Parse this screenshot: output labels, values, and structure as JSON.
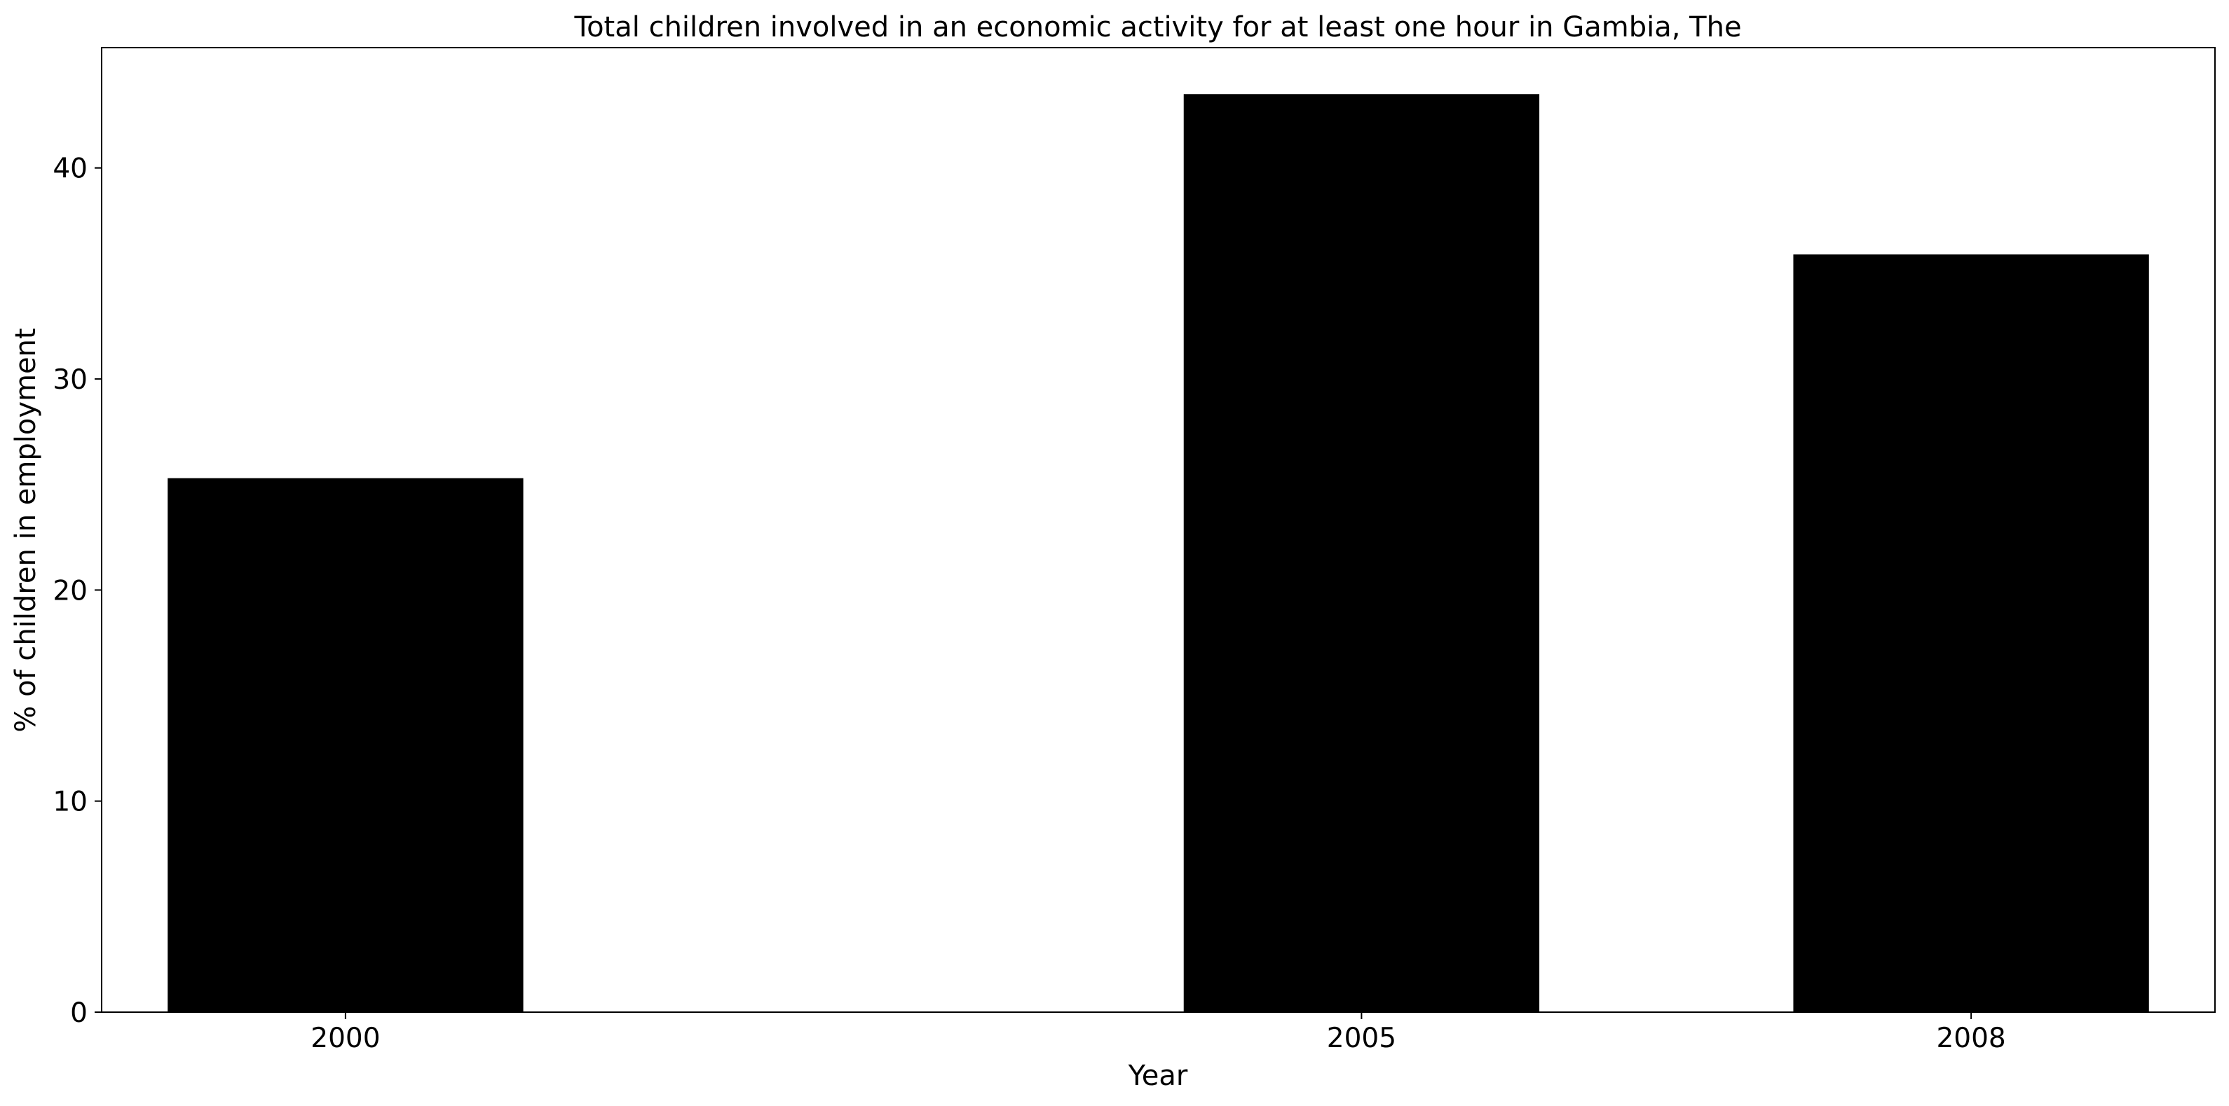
{
  "chart_data": {
    "type": "bar",
    "title": "Total children involved in an economic activity for at least one hour in Gambia, The",
    "xlabel": "Year",
    "ylabel": "% of children in employment",
    "categories": [
      "2000",
      "2005",
      "2008"
    ],
    "values": [
      25.3,
      43.5,
      35.9
    ],
    "ylim": [
      0,
      45.7
    ],
    "yticks": [
      0,
      10,
      20,
      30,
      40
    ],
    "grid": false,
    "bar_color": "#000000"
  }
}
